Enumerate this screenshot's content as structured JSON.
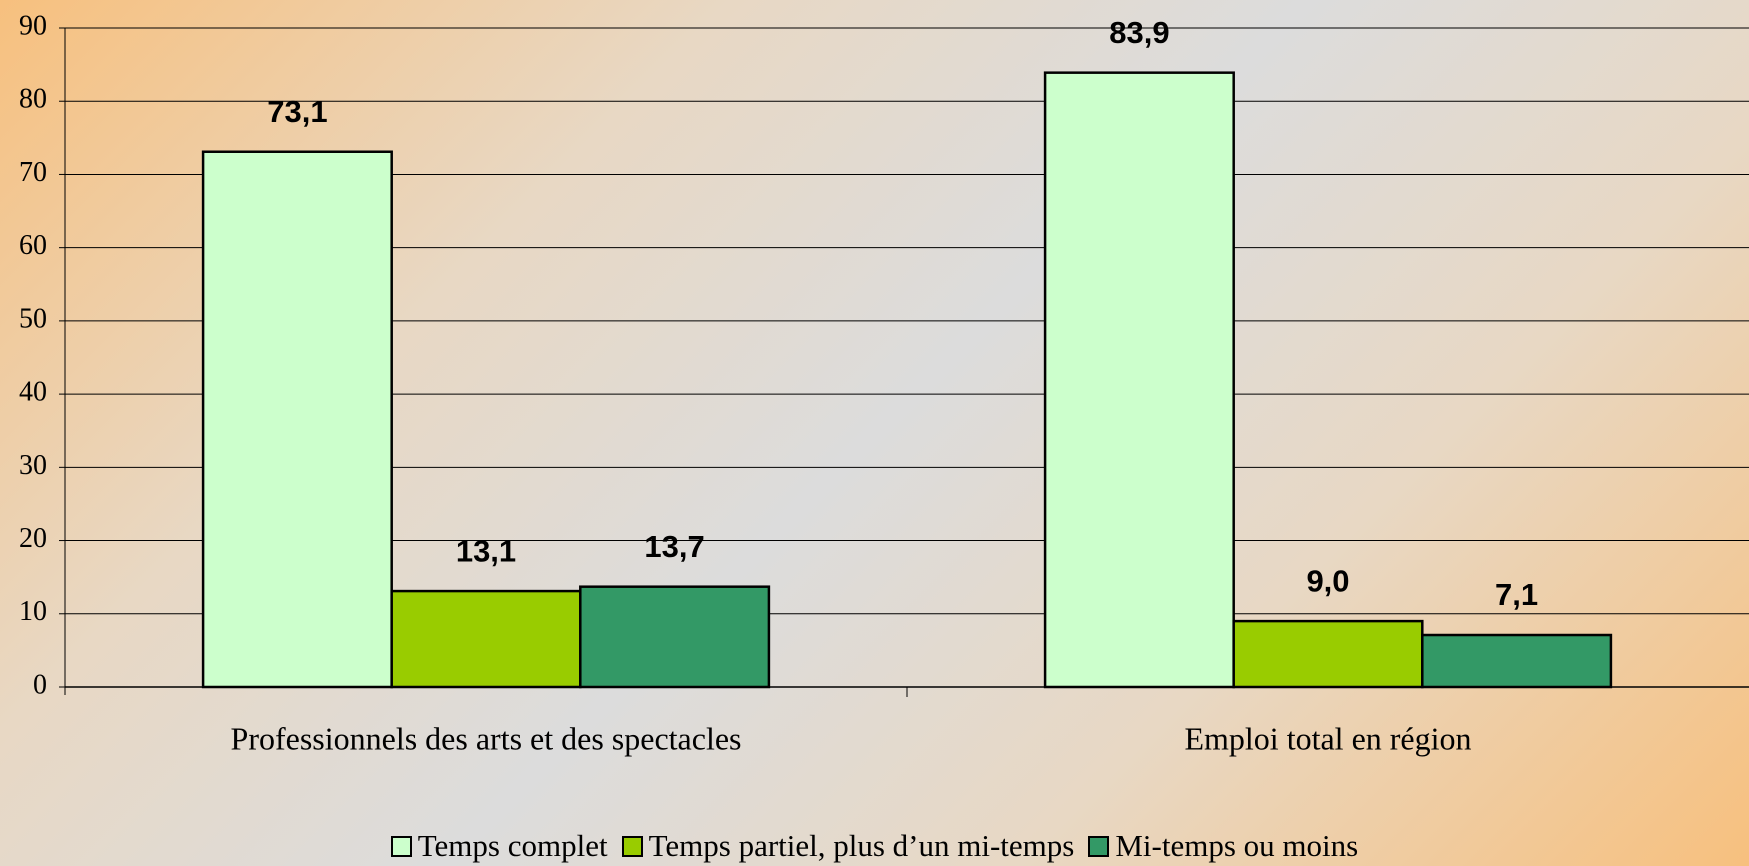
{
  "chart_data": {
    "type": "bar",
    "categories": [
      "Professionnels des arts et des spectacles",
      "Emploi total en région"
    ],
    "series": [
      {
        "name": "Temps complet",
        "color": "#ccffcc",
        "values": [
          73.1,
          83.9
        ],
        "value_labels": [
          "73,1",
          "83,9"
        ]
      },
      {
        "name": "Temps partiel, plus d’un mi-temps",
        "color": "#99cc00",
        "values": [
          13.1,
          9.0
        ],
        "value_labels": [
          "13,1",
          "9,0"
        ]
      },
      {
        "name": "Mi-temps ou moins",
        "color": "#339966",
        "values": [
          13.7,
          7.1
        ],
        "value_labels": [
          "13,7",
          "7,1"
        ]
      }
    ],
    "ylim": [
      0,
      90
    ],
    "yticks": [
      0,
      10,
      20,
      30,
      40,
      50,
      60,
      70,
      80,
      90
    ],
    "grid": true,
    "legend": "bottom"
  }
}
